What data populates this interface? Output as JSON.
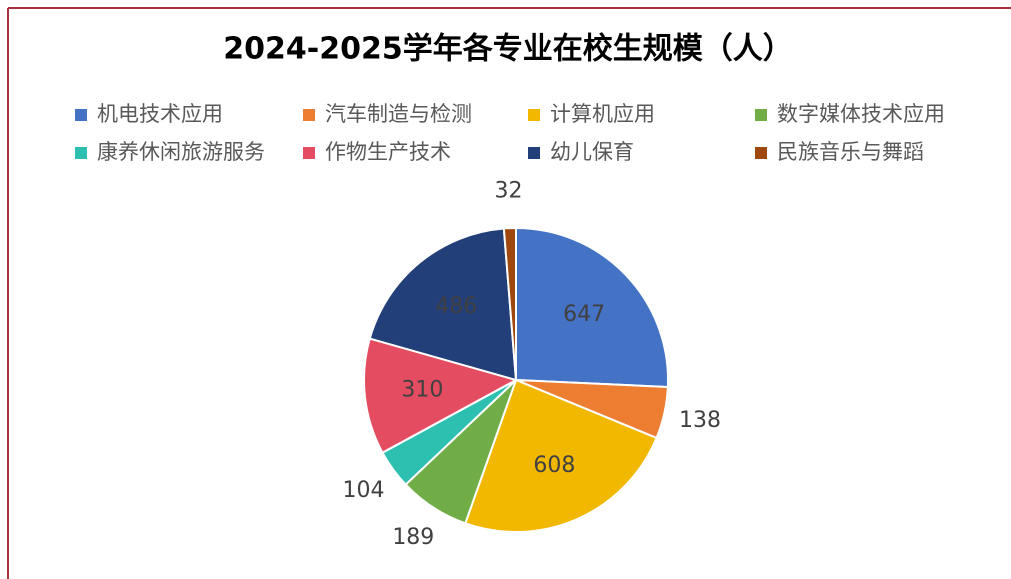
{
  "chart_data": {
    "type": "pie",
    "title": "2024-2025学年各专业在校生规模（人）",
    "categories": [
      "机电技术应用",
      "汽车制造与检测",
      "计算机应用",
      "数字媒体技术应用",
      "康养休闲旅游服务",
      "作物生产技术",
      "幼儿保育",
      "民族音乐与舞蹈"
    ],
    "values": [
      647,
      138,
      608,
      189,
      104,
      310,
      486,
      32
    ],
    "colors": [
      "#4472c4",
      "#ed7d31",
      "#f2b800",
      "#70ad47",
      "#2dbfb0",
      "#e44c61",
      "#223f7a",
      "#9e480e"
    ],
    "legend": "top"
  }
}
